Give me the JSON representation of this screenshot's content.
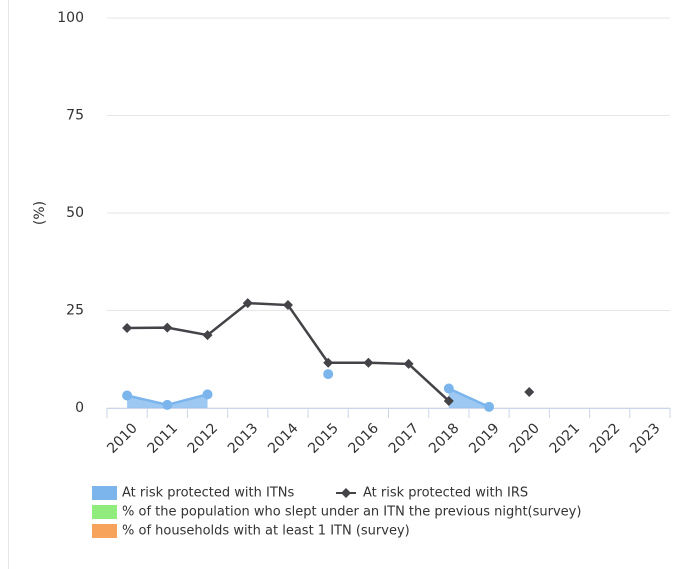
{
  "chart_data": {
    "type": "line",
    "ylabel": "(%)",
    "categories": [
      "2010",
      "2011",
      "2012",
      "2013",
      "2014",
      "2015",
      "2016",
      "2017",
      "2018",
      "2019",
      "2020",
      "2021",
      "2022",
      "2023"
    ],
    "ylim": [
      0,
      100
    ],
    "yticks": [
      0,
      25,
      50,
      75,
      100
    ],
    "grid": true,
    "series": [
      {
        "name": "At risk protected with ITNs",
        "color": "#7cb5ec",
        "style": "area",
        "values": [
          3.2,
          0.8,
          3.5,
          null,
          null,
          8.7,
          null,
          null,
          5.0,
          0.3,
          null,
          null,
          null,
          null
        ]
      },
      {
        "name": "At risk protected with IRS",
        "color": "#434348",
        "style": "line",
        "values": [
          20.5,
          20.6,
          18.7,
          26.9,
          26.4,
          11.6,
          11.6,
          11.3,
          1.8,
          null,
          4.1,
          null,
          null,
          null
        ]
      },
      {
        "name": "% of the population who slept under an ITN the previous night(survey)",
        "color": "#90ed7d",
        "style": "bar",
        "values": [
          null,
          null,
          null,
          null,
          null,
          null,
          null,
          null,
          null,
          null,
          null,
          null,
          null,
          null
        ]
      },
      {
        "name": "% of households with at least 1 ITN (survey)",
        "color": "#f7a35c",
        "style": "bar",
        "values": [
          null,
          null,
          null,
          null,
          null,
          null,
          null,
          null,
          null,
          null,
          null,
          null,
          null,
          null
        ]
      }
    ]
  }
}
